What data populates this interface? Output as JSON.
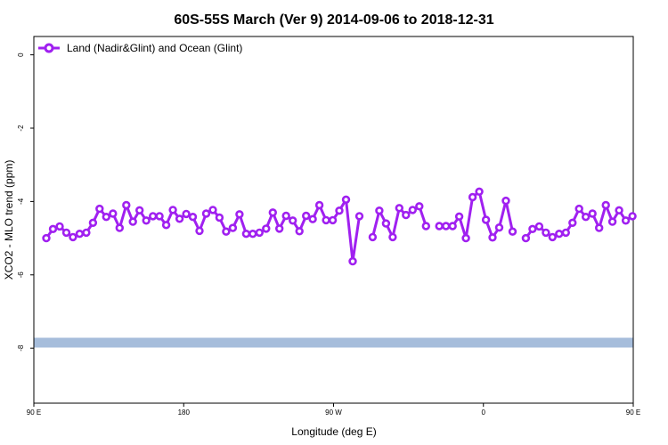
{
  "chart_data": {
    "type": "line",
    "title": "60S-55S March (Ver 9)   2014-09-06 to 2018-12-31",
    "xlabel": "Longitude (deg E)",
    "ylabel": "XCO2 - MLO trend (ppm)",
    "xlim": [
      90,
      450
    ],
    "ylim": [
      -9.5,
      0.5
    ],
    "x_ticks": [
      {
        "value": 90,
        "label": "90 E"
      },
      {
        "value": 180,
        "label": "180"
      },
      {
        "value": 270,
        "label": "90 W"
      },
      {
        "value": 360,
        "label": "0"
      },
      {
        "value": 450,
        "label": "90 E"
      },
      {
        "value": 540,
        "label": "180"
      }
    ],
    "y_ticks": [
      0,
      -2,
      -4,
      -6,
      -8
    ],
    "legend": {
      "label": "Land (Nadir&Glint) and Ocean (Glint)",
      "position": "top-left"
    },
    "series": [
      {
        "name": "Land (Nadir&Glint) and Ocean (Glint)",
        "color": "#a020f0",
        "points": [
          [
            97.5,
            -5.0
          ],
          [
            101.5,
            -4.75
          ],
          [
            105.5,
            -4.68
          ],
          [
            109.5,
            -4.85
          ],
          [
            113.5,
            -4.97
          ],
          [
            117.5,
            -4.88
          ],
          [
            121.5,
            -4.85
          ],
          [
            125.5,
            -4.58
          ],
          [
            129.5,
            -4.2
          ],
          [
            133.5,
            -4.42
          ],
          [
            137.5,
            -4.33
          ],
          [
            141.5,
            -4.72
          ],
          [
            145.5,
            -4.1
          ],
          [
            149.5,
            -4.55
          ],
          [
            153.5,
            -4.24
          ],
          [
            157.5,
            -4.52
          ],
          [
            161.5,
            -4.4
          ],
          [
            165.5,
            -4.4
          ],
          [
            169.5,
            -4.64
          ],
          [
            173.5,
            -4.23
          ],
          [
            177.5,
            -4.47
          ],
          [
            181.5,
            -4.34
          ],
          [
            185.5,
            -4.42
          ],
          [
            189.5,
            -4.8
          ],
          [
            193.5,
            -4.33
          ],
          [
            197.5,
            -4.23
          ],
          [
            201.5,
            -4.44
          ],
          [
            205.5,
            -4.82
          ],
          [
            209.5,
            -4.72
          ],
          [
            213.5,
            -4.35
          ],
          [
            217.5,
            -4.88
          ],
          [
            221.5,
            -4.88
          ],
          [
            225.5,
            -4.85
          ],
          [
            229.5,
            -4.74
          ],
          [
            233.5,
            -4.3
          ],
          [
            237.5,
            -4.74
          ],
          [
            241.5,
            -4.39
          ],
          [
            245.5,
            -4.52
          ],
          [
            249.5,
            -4.81
          ],
          [
            253.5,
            -4.39
          ],
          [
            257.5,
            -4.48
          ],
          [
            261.5,
            -4.1
          ],
          [
            265.5,
            -4.51
          ],
          [
            269.5,
            -4.51
          ],
          [
            273.5,
            -4.25
          ],
          [
            277.5,
            -3.95
          ],
          [
            281.5,
            -5.63
          ],
          [
            285.5,
            -4.4
          ],
          null,
          [
            293.5,
            -4.97
          ],
          [
            297.5,
            -4.25
          ],
          [
            301.5,
            -4.6
          ],
          [
            305.5,
            -4.97
          ],
          [
            309.5,
            -4.18
          ],
          [
            313.5,
            -4.37
          ],
          [
            317.5,
            -4.23
          ],
          [
            321.5,
            -4.13
          ],
          [
            325.5,
            -4.67
          ],
          null,
          [
            333.5,
            -4.67
          ],
          [
            337.5,
            -4.67
          ],
          [
            341.5,
            -4.67
          ],
          [
            345.5,
            -4.41
          ],
          [
            349.5,
            -5.0
          ],
          [
            353.5,
            -3.88
          ],
          [
            357.5,
            -3.73
          ],
          [
            361.5,
            -4.5
          ],
          [
            365.5,
            -4.98
          ],
          [
            369.5,
            -4.71
          ],
          [
            373.5,
            -3.98
          ],
          [
            377.5,
            -4.82
          ],
          null,
          [
            385.5,
            -5.0
          ],
          [
            389.5,
            -4.75
          ],
          [
            393.5,
            -4.68
          ],
          [
            397.5,
            -4.85
          ],
          [
            401.5,
            -4.97
          ],
          [
            405.5,
            -4.88
          ],
          [
            409.5,
            -4.85
          ],
          [
            413.5,
            -4.58
          ],
          [
            417.5,
            -4.2
          ],
          [
            421.5,
            -4.42
          ],
          [
            425.5,
            -4.33
          ],
          [
            429.5,
            -4.72
          ],
          [
            433.5,
            -4.1
          ],
          [
            437.5,
            -4.55
          ],
          [
            441.5,
            -4.24
          ],
          [
            445.5,
            -4.52
          ],
          [
            449.5,
            -4.4
          ]
        ]
      }
    ],
    "band": {
      "y": -7.85,
      "color": "#a6bddb",
      "x_range": [
        90,
        450
      ]
    }
  }
}
